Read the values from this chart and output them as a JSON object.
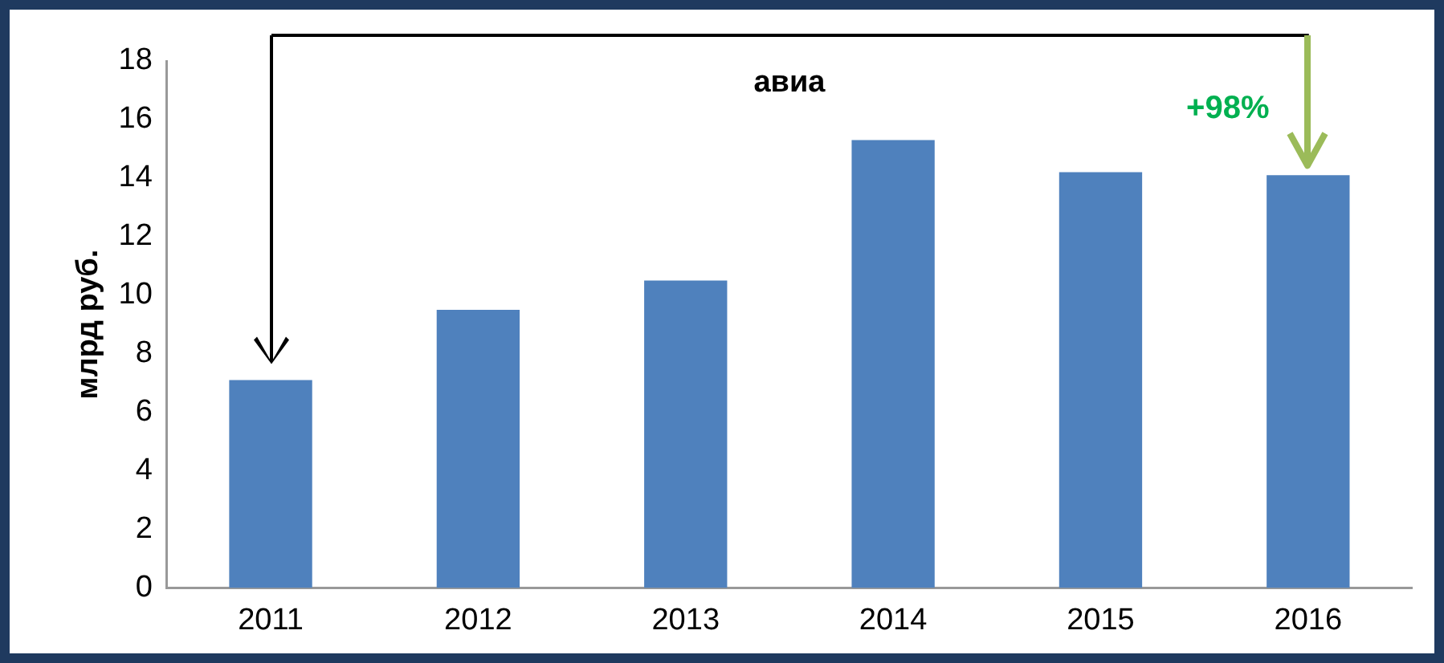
{
  "chart_data": {
    "type": "bar",
    "title": "авиа",
    "ylabel": "млрд руб.",
    "categories": [
      "2011",
      "2012",
      "2013",
      "2014",
      "2015",
      "2016"
    ],
    "values": [
      7.1,
      9.5,
      10.5,
      15.3,
      14.2,
      14.1
    ],
    "color": "#4f81bd",
    "ylim": [
      0,
      18
    ],
    "yticks": [
      0,
      2,
      4,
      6,
      8,
      10,
      12,
      14,
      16,
      18
    ],
    "grid": false,
    "legend": false,
    "annotations": [
      "+98%"
    ]
  }
}
